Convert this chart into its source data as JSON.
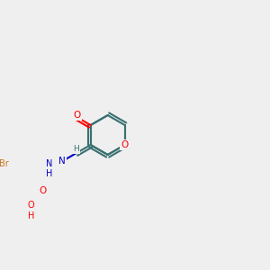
{
  "bg_color": "#efefef",
  "bond_color": "#3a7070",
  "bond_lw": 1.5,
  "atom_colors": {
    "O": "#ff0000",
    "N": "#0000cc",
    "Br": "#cc7722",
    "C": "#3a7070",
    "H": "#3a7070"
  },
  "font_size": 7.5,
  "label_font_size": 7.5
}
